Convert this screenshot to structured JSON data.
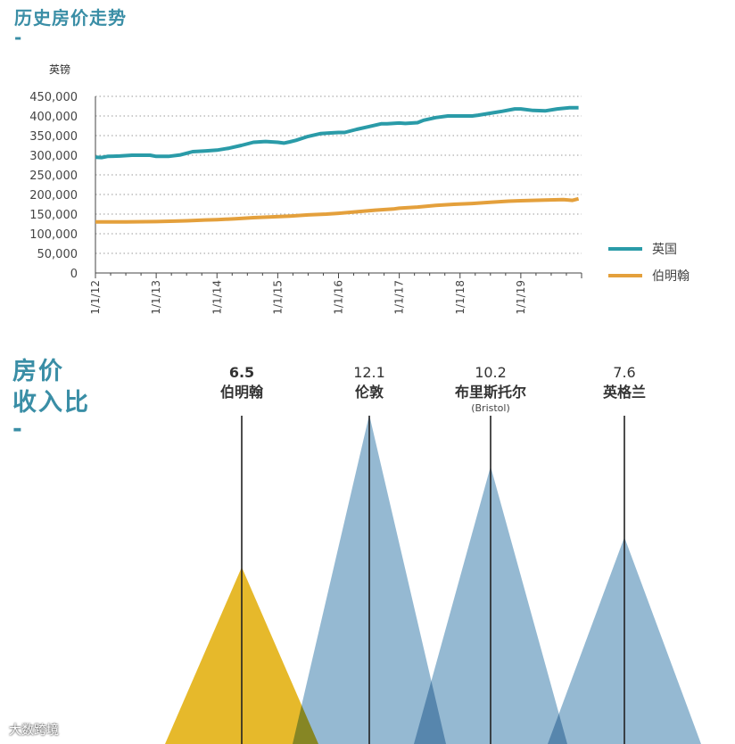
{
  "titles": {
    "price_history": "历史房价走势",
    "dash": "-",
    "ratio_line1": "房价",
    "ratio_line2": "收入比"
  },
  "watermark": "大数跨境",
  "chart_data": [
    {
      "type": "line",
      "title": "历史房价走势",
      "ylabel": "英镑",
      "ylim": [
        0,
        450000
      ],
      "yticks": [
        "450,000",
        "400,000",
        "350,000",
        "300,000",
        "250,000",
        "200,000",
        "150,000",
        "100,000",
        "50,000",
        "0"
      ],
      "ytick_values": [
        450000,
        400000,
        350000,
        300000,
        250000,
        200000,
        150000,
        100000,
        50000,
        0
      ],
      "xticks": [
        "1/1/12",
        "1/1/13",
        "1/1/14",
        "1/1/15",
        "1/1/16",
        "1/1/17",
        "1/1/18",
        "1/1/19"
      ],
      "xlim": [
        2012.0,
        2020.0
      ],
      "grid": "horizontal-dotted",
      "legend": "right",
      "series": [
        {
          "name": "英国",
          "color": "#2a9ba8",
          "x": [
            2012.0,
            2012.1,
            2012.2,
            2012.4,
            2012.6,
            2012.8,
            2012.9,
            2013.0,
            2013.2,
            2013.4,
            2013.5,
            2013.6,
            2013.8,
            2014.0,
            2014.2,
            2014.4,
            2014.6,
            2014.8,
            2015.0,
            2015.1,
            2015.2,
            2015.3,
            2015.5,
            2015.7,
            2015.9,
            2016.0,
            2016.1,
            2016.3,
            2016.5,
            2016.7,
            2016.8,
            2017.0,
            2017.1,
            2017.3,
            2017.4,
            2017.6,
            2017.8,
            2018.0,
            2018.2,
            2018.3,
            2018.5,
            2018.7,
            2018.9,
            2019.0,
            2019.2,
            2019.4,
            2019.6,
            2019.8,
            2019.95
          ],
          "values": [
            295000,
            294000,
            297000,
            298000,
            300000,
            300000,
            300000,
            297000,
            297000,
            301000,
            305000,
            309000,
            311000,
            313000,
            318000,
            325000,
            333000,
            335000,
            333000,
            331000,
            334000,
            338000,
            348000,
            355000,
            357000,
            358000,
            358000,
            366000,
            373000,
            380000,
            380000,
            382000,
            381000,
            383000,
            389000,
            396000,
            400000,
            400000,
            400000,
            402000,
            407000,
            412000,
            418000,
            418000,
            414000,
            413000,
            418000,
            421000,
            421000
          ]
        },
        {
          "name": "伯明翰",
          "color": "#e4a03c",
          "x": [
            2012.0,
            2012.5,
            2013.0,
            2013.3,
            2013.5,
            2013.8,
            2014.0,
            2014.3,
            2014.6,
            2014.9,
            2015.2,
            2015.5,
            2015.8,
            2016.0,
            2016.3,
            2016.6,
            2016.9,
            2017.0,
            2017.3,
            2017.6,
            2017.9,
            2018.2,
            2018.5,
            2018.8,
            2019.0,
            2019.4,
            2019.7,
            2019.85,
            2019.95
          ],
          "values": [
            130000,
            130000,
            131000,
            132000,
            133000,
            135000,
            136000,
            138000,
            141000,
            143000,
            145000,
            148000,
            150000,
            152000,
            156000,
            160000,
            163000,
            165000,
            168000,
            172000,
            175000,
            177000,
            180000,
            183000,
            184000,
            186000,
            187000,
            185000,
            189000
          ]
        }
      ]
    },
    {
      "type": "bar",
      "title": "房价收入比",
      "style": "triangles",
      "categories": [
        "伯明翰",
        "伦敦",
        "布里斯托尔",
        "英格兰"
      ],
      "sublabels": [
        "",
        "",
        "(Bristol)",
        ""
      ],
      "values": [
        6.5,
        12.1,
        10.2,
        7.6
      ],
      "value_labels": [
        "6.5",
        "12.1",
        "10.2",
        "7.6"
      ],
      "colors": [
        "#e5b520",
        "#7ba7c7",
        "#7ba7c7",
        "#7ba7c7"
      ],
      "ylim": [
        0,
        13.5
      ]
    }
  ]
}
